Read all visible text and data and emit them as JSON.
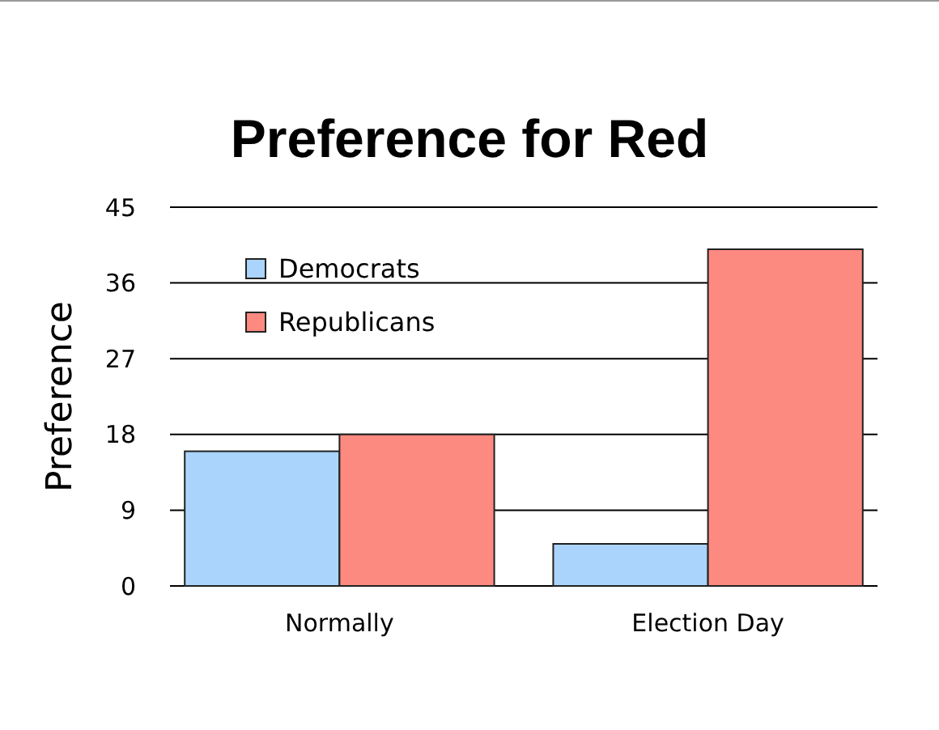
{
  "chart_data": {
    "type": "bar",
    "title": "Preference for Red",
    "ylabel": "Preference",
    "categories": [
      "Normally",
      "Election Day"
    ],
    "series": [
      {
        "name": "Democrats",
        "color": "#aad4fc",
        "values": [
          16,
          5
        ]
      },
      {
        "name": "Republicans",
        "color": "#fd8a80",
        "values": [
          18,
          40
        ]
      }
    ],
    "ylim": [
      0,
      45
    ],
    "yticks": [
      0,
      9,
      18,
      27,
      36,
      45
    ],
    "grid": "y",
    "legend": "top left"
  }
}
